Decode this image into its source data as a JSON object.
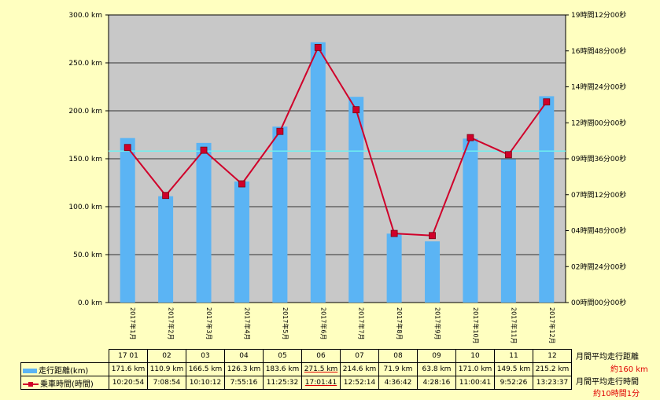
{
  "chart_data": {
    "type": "bar",
    "categories": [
      "2017年1月",
      "2017年2月",
      "2017年3月",
      "2017年4月",
      "2017年5月",
      "2017年6月",
      "2017年7月",
      "2017年8月",
      "2017年9月",
      "2017年10月",
      "2017年11月",
      "2017年12月"
    ],
    "table_headers": [
      "17 01",
      "02",
      "03",
      "04",
      "05",
      "06",
      "07",
      "08",
      "09",
      "10",
      "11",
      "12"
    ],
    "series": [
      {
        "name": "走行距離(km)",
        "type": "bar",
        "axis": "left",
        "values": [
          171.6,
          110.9,
          166.5,
          126.3,
          183.6,
          271.5,
          214.6,
          71.9,
          63.8,
          171.0,
          149.5,
          215.2
        ],
        "labels": [
          "171.6 km",
          "110.9 km",
          "166.5 km",
          "126.3 km",
          "183.6 km",
          "271.5 km",
          "214.6 km",
          "71.9 km",
          "63.8 km",
          "171.0 km",
          "149.5 km",
          "215.2 km"
        ]
      },
      {
        "name": "乗車時間(時間)",
        "type": "line",
        "axis": "right",
        "values": [
          "10:20:54",
          "7:08:54",
          "10:10:12",
          "7:55:16",
          "11:25:32",
          "17:01:41",
          "12:52:14",
          "4:36:42",
          "4:28:16",
          "11:00:41",
          "9:52:26",
          "13:23:37"
        ]
      }
    ],
    "ylim_left": [
      0,
      300
    ],
    "yticks_left": [
      "0.0 km",
      "50.0 km",
      "100.0 km",
      "150.0 km",
      "200.0 km",
      "250.0 km",
      "300.0 km"
    ],
    "yticks_right": [
      "00時間00分00秒",
      "02時間24分00秒",
      "04時間48分00秒",
      "07時間12分00秒",
      "09時間36分00秒",
      "12時間00分00秒",
      "14時間24分00秒",
      "16時間48分00秒",
      "19時間12分00秒"
    ],
    "ylim_right_hours": [
      0,
      19.2
    ],
    "reference_line_km": 158,
    "highlight_month_index": 5,
    "grid": true,
    "colors": {
      "plot_bg": "#C8C8C8",
      "bar": "#5BB4F4",
      "line": "#D0002A",
      "ref_line": "#6FF0F0",
      "page_bg": "#FFFFC0"
    }
  },
  "notes": {
    "avg_distance_label": "月間平均走行距離",
    "avg_distance_value": "約160 km",
    "avg_time_label": "月間平均走行時間",
    "avg_time_value": "約10時間1分"
  }
}
